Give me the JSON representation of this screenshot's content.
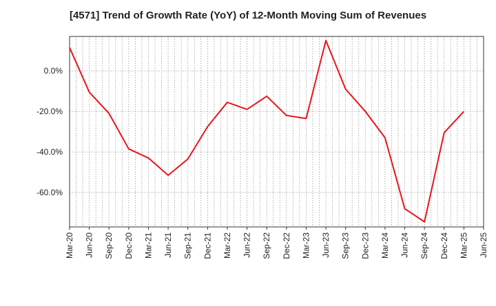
{
  "chart_data": {
    "type": "line",
    "title": "[4571]  Trend of Growth Rate (YoY) of 12-Month Moving Sum of Revenues",
    "xlabel": "",
    "ylabel": "",
    "x_tick_labels": [
      "Mar-20",
      "Jun-20",
      "Sep-20",
      "Dec-20",
      "Mar-21",
      "Jun-21",
      "Sep-21",
      "Dec-21",
      "Mar-22",
      "Jun-22",
      "Sep-22",
      "Dec-22",
      "Mar-23",
      "Jun-23",
      "Sep-23",
      "Dec-23",
      "Mar-24",
      "Jun-24",
      "Sep-24",
      "Dec-24",
      "Mar-25",
      "Jun-25"
    ],
    "y_ticks": [
      0,
      -20,
      -40,
      -60
    ],
    "y_tick_labels": [
      "0.0%",
      "-20.0%",
      "-40.0%",
      "-60.0%"
    ],
    "ylim": [
      -77,
      17
    ],
    "grid": true,
    "series": [
      {
        "color": "#e8141c",
        "x": [
          "Mar-20",
          "Jun-20",
          "Sep-20",
          "Dec-20",
          "Mar-21",
          "Jun-21",
          "Sep-21",
          "Dec-21",
          "Mar-22",
          "Jun-22",
          "Sep-22",
          "Dec-22",
          "Mar-23",
          "Jun-23",
          "Sep-23",
          "Dec-23",
          "Mar-24",
          "Jun-24",
          "Sep-24",
          "Dec-24",
          "Mar-25"
        ],
        "values": [
          11.5,
          -10.5,
          -21.0,
          -38.5,
          -43.0,
          -51.5,
          -43.5,
          -27.5,
          -15.5,
          -19.0,
          -12.5,
          -22.0,
          -23.5,
          15.0,
          -9.0,
          -20.0,
          -33.0,
          -68.0,
          -74.5,
          -30.5,
          -20.0
        ]
      }
    ]
  }
}
